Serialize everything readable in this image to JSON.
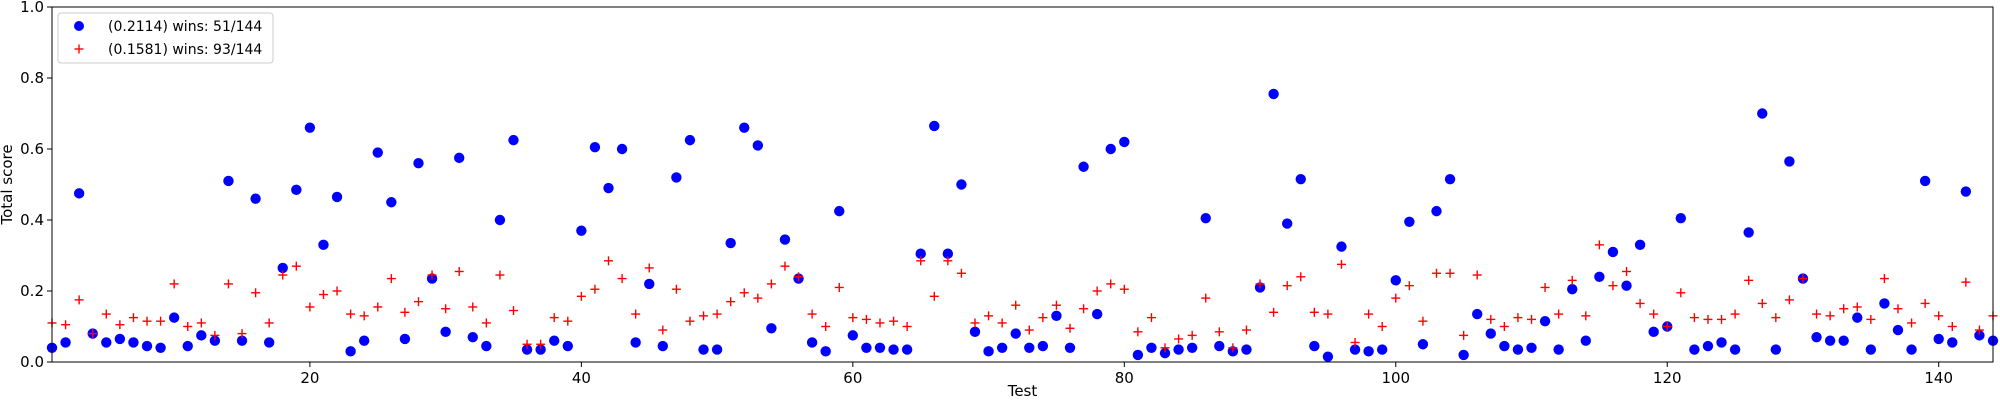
{
  "chart_data": {
    "type": "scatter",
    "title": "",
    "xlabel": "Test",
    "ylabel": "Total score",
    "xlim": [
      1,
      144
    ],
    "ylim": [
      0,
      1.0
    ],
    "xticks": [
      20,
      40,
      60,
      80,
      100,
      120,
      140
    ],
    "yticks": [
      0.0,
      0.2,
      0.4,
      0.6,
      0.8,
      1.0
    ],
    "grid": false,
    "legend_position": "top-left",
    "series": [
      {
        "name": "(0.2114) wins: 51/144",
        "marker": "circle",
        "color": "#0000ff",
        "values": [
          0.04,
          0.055,
          0.475,
          0.08,
          0.055,
          0.065,
          0.055,
          0.045,
          0.04,
          0.125,
          0.045,
          0.075,
          0.06,
          0.51,
          0.06,
          0.46,
          0.055,
          0.265,
          0.485,
          0.66,
          0.33,
          0.465,
          0.03,
          0.06,
          0.59,
          0.45,
          0.065,
          0.56,
          0.235,
          0.085,
          0.575,
          0.07,
          0.045,
          0.4,
          0.625,
          0.035,
          0.035,
          0.06,
          0.045,
          0.37,
          0.605,
          0.49,
          0.6,
          0.055,
          0.22,
          0.045,
          0.52,
          0.625,
          0.035,
          0.035,
          0.335,
          0.66,
          0.61,
          0.095,
          0.345,
          0.235,
          0.055,
          0.03,
          0.425,
          0.075,
          0.04,
          0.04,
          0.035,
          0.035,
          0.305,
          0.665,
          0.305,
          0.5,
          0.085,
          0.03,
          0.04,
          0.08,
          0.04,
          0.045,
          0.13,
          0.04,
          0.55,
          0.135,
          0.6,
          0.62,
          0.02,
          0.04,
          0.025,
          0.035,
          0.04,
          0.405,
          0.045,
          0.03,
          0.035,
          0.21,
          0.755,
          0.39,
          0.515,
          0.045,
          0.015,
          0.325,
          0.035,
          0.03,
          0.035,
          0.23,
          0.395,
          0.05,
          0.425,
          0.515,
          0.02,
          0.135,
          0.08,
          0.045,
          0.035,
          0.04,
          0.115,
          0.035,
          0.205,
          0.06,
          0.24,
          0.31,
          0.215,
          0.33,
          0.085,
          0.1,
          0.405,
          0.035,
          0.045,
          0.055,
          0.035,
          0.365,
          0.7,
          0.035,
          0.565,
          0.235,
          0.07,
          0.06,
          0.06,
          0.125,
          0.035,
          0.165,
          0.09,
          0.035,
          0.51,
          0.065,
          0.055,
          0.48,
          0.075,
          0.06
        ]
      },
      {
        "name": "(0.1581) wins: 93/144",
        "marker": "plus",
        "color": "#ff0000",
        "values": [
          0.11,
          0.105,
          0.175,
          0.08,
          0.135,
          0.105,
          0.125,
          0.115,
          0.115,
          0.22,
          0.1,
          0.11,
          0.075,
          0.22,
          0.08,
          0.195,
          0.11,
          0.245,
          0.27,
          0.155,
          0.19,
          0.2,
          0.135,
          0.13,
          0.155,
          0.235,
          0.14,
          0.17,
          0.245,
          0.15,
          0.255,
          0.155,
          0.11,
          0.245,
          0.145,
          0.05,
          0.05,
          0.125,
          0.115,
          0.185,
          0.205,
          0.285,
          0.235,
          0.135,
          0.265,
          0.09,
          0.205,
          0.115,
          0.13,
          0.135,
          0.17,
          0.195,
          0.18,
          0.22,
          0.27,
          0.24,
          0.135,
          0.1,
          0.21,
          0.125,
          0.12,
          0.11,
          0.115,
          0.1,
          0.285,
          0.185,
          0.285,
          0.25,
          0.11,
          0.13,
          0.11,
          0.16,
          0.09,
          0.125,
          0.16,
          0.095,
          0.15,
          0.2,
          0.22,
          0.205,
          0.085,
          0.125,
          0.04,
          0.065,
          0.075,
          0.18,
          0.085,
          0.04,
          0.09,
          0.22,
          0.14,
          0.215,
          0.24,
          0.14,
          0.135,
          0.275,
          0.055,
          0.135,
          0.1,
          0.18,
          0.215,
          0.115,
          0.25,
          0.25,
          0.075,
          0.245,
          0.12,
          0.1,
          0.125,
          0.12,
          0.21,
          0.135,
          0.23,
          0.13,
          0.33,
          0.215,
          0.255,
          0.165,
          0.135,
          0.1,
          0.195,
          0.125,
          0.12,
          0.12,
          0.135,
          0.23,
          0.165,
          0.125,
          0.175,
          0.235,
          0.135,
          0.13,
          0.15,
          0.155,
          0.12,
          0.235,
          0.15,
          0.11,
          0.165,
          0.13,
          0.1,
          0.225,
          0.09,
          0.13
        ]
      }
    ]
  }
}
